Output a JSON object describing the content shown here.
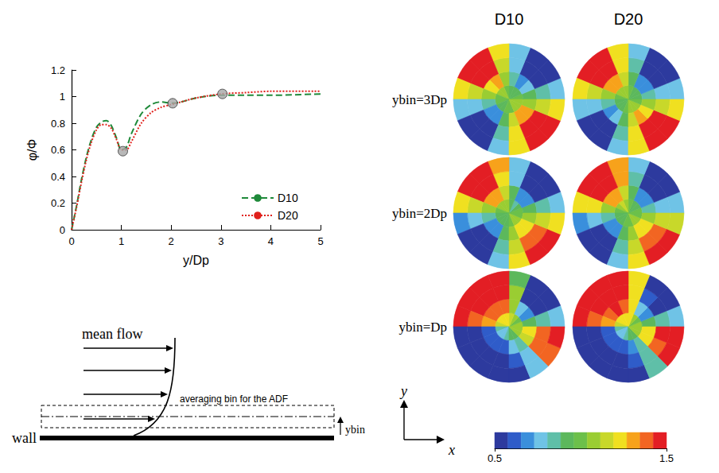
{
  "chart_data": {
    "type": "line",
    "x_label": "y/Dp",
    "y_label": "φ/Φ",
    "xlim": [
      0,
      5
    ],
    "xticks": [
      0,
      1,
      2,
      3,
      4,
      5
    ],
    "ylim": [
      0,
      1.2
    ],
    "yticks": [
      0,
      0.2,
      0.4,
      0.6,
      0.8,
      1,
      1.2
    ],
    "grid": false,
    "legend": "lower right",
    "series": [
      {
        "name": "D10",
        "color": "#1f8a3a",
        "line_style": "dashed",
        "x": [
          0,
          0.1,
          0.2,
          0.3,
          0.4,
          0.5,
          0.6,
          0.7,
          0.8,
          0.9,
          1.0,
          1.1,
          1.2,
          1.4,
          1.6,
          1.8,
          2.0,
          2.2,
          2.5,
          3.0,
          3.5,
          4.0,
          5.0
        ],
        "values": [
          0,
          0.18,
          0.38,
          0.55,
          0.68,
          0.77,
          0.81,
          0.82,
          0.78,
          0.69,
          0.6,
          0.62,
          0.72,
          0.87,
          0.94,
          0.96,
          0.95,
          0.96,
          0.99,
          1.01,
          1.01,
          1.01,
          1.02
        ]
      },
      {
        "name": "D20",
        "color": "#e0201b",
        "line_style": "dotted",
        "x": [
          0,
          0.1,
          0.2,
          0.3,
          0.4,
          0.5,
          0.6,
          0.7,
          0.8,
          0.9,
          1.0,
          1.1,
          1.2,
          1.4,
          1.6,
          1.8,
          2.0,
          2.2,
          2.5,
          3.0,
          3.5,
          4.0,
          5.0
        ],
        "values": [
          0,
          0.17,
          0.36,
          0.53,
          0.66,
          0.75,
          0.79,
          0.79,
          0.76,
          0.68,
          0.6,
          0.6,
          0.66,
          0.8,
          0.88,
          0.92,
          0.94,
          0.96,
          0.99,
          1.02,
          1.03,
          1.04,
          1.04
        ]
      },
      {
        "type": "scatter",
        "marker": "circle",
        "color": "#a6a6a6",
        "x": [
          1.03,
          2.03,
          3.03
        ],
        "values": [
          0.59,
          0.95,
          1.02
        ]
      }
    ]
  },
  "schematic": {
    "flow_label": "mean flow",
    "bin_label": "averaging bin for the ADF",
    "height_label": "ybin",
    "wall_label": "wall"
  },
  "axes_key": {
    "y": "y",
    "x": "x"
  },
  "sphere_maps": {
    "columns": [
      "D10",
      "D20"
    ],
    "rows": [
      {
        "label": "ybin=3Dp",
        "maps": [
          [
            [
              0.97,
              0.92,
              0.9,
              0.95,
              1.03,
              1.08,
              1.08,
              1.02,
              0.97,
              0.92,
              0.92,
              0.97,
              1.03,
              1.08,
              1.1,
              1.04
            ],
            [
              0.9,
              0.74,
              0.72,
              0.88,
              1.1,
              1.27,
              1.26,
              1.08,
              0.88,
              0.72,
              0.73,
              0.9,
              1.12,
              1.28,
              1.27,
              1.1
            ],
            [
              0.82,
              0.55,
              0.54,
              0.8,
              1.18,
              1.45,
              1.44,
              1.15,
              0.8,
              0.55,
              0.55,
              0.82,
              1.2,
              1.46,
              1.45,
              1.18
            ],
            [
              0.78,
              0.5,
              0.5,
              0.75,
              1.22,
              1.5,
              1.5,
              1.2,
              0.76,
              0.5,
              0.5,
              0.78,
              1.24,
              1.5,
              1.5,
              1.22
            ]
          ],
          [
            [
              0.96,
              0.9,
              0.91,
              0.97,
              1.05,
              1.1,
              1.08,
              1.03,
              0.95,
              0.9,
              0.92,
              0.98,
              1.04,
              1.1,
              1.08,
              1.03
            ],
            [
              0.88,
              0.72,
              0.73,
              0.9,
              1.12,
              1.3,
              1.27,
              1.1,
              0.87,
              0.7,
              0.74,
              0.9,
              1.13,
              1.3,
              1.26,
              1.08
            ],
            [
              0.8,
              0.53,
              0.55,
              0.82,
              1.2,
              1.48,
              1.45,
              1.17,
              0.79,
              0.53,
              0.56,
              0.84,
              1.21,
              1.48,
              1.44,
              1.16
            ],
            [
              0.76,
              0.5,
              0.5,
              0.77,
              1.25,
              1.5,
              1.5,
              1.22,
              0.74,
              0.5,
              0.5,
              0.8,
              1.26,
              1.5,
              1.5,
              1.2
            ]
          ]
        ]
      },
      {
        "label": "ybin=2Dp",
        "maps": [
          [
            [
              0.98,
              0.9,
              0.88,
              0.96,
              1.06,
              1.1,
              1.08,
              1.02,
              0.96,
              0.9,
              0.9,
              0.96,
              1.02,
              1.06,
              1.06,
              1.02
            ],
            [
              0.9,
              0.7,
              0.68,
              0.9,
              1.15,
              1.32,
              1.3,
              1.1,
              0.86,
              0.68,
              0.7,
              0.9,
              1.08,
              1.22,
              1.22,
              1.08
            ],
            [
              0.82,
              0.52,
              0.5,
              0.8,
              1.25,
              1.5,
              1.48,
              1.18,
              0.78,
              0.52,
              0.54,
              0.82,
              1.15,
              1.4,
              1.42,
              1.15
            ],
            [
              0.78,
              0.5,
              0.5,
              0.76,
              1.3,
              1.5,
              1.5,
              1.24,
              0.72,
              0.5,
              0.5,
              0.76,
              1.2,
              1.5,
              1.5,
              1.2
            ]
          ],
          [
            [
              0.97,
              0.9,
              0.89,
              0.97,
              1.06,
              1.12,
              1.1,
              1.03,
              0.95,
              0.9,
              0.91,
              0.97,
              1.03,
              1.07,
              1.06,
              1.01
            ],
            [
              0.88,
              0.69,
              0.7,
              0.9,
              1.16,
              1.34,
              1.31,
              1.11,
              0.85,
              0.67,
              0.71,
              0.9,
              1.1,
              1.24,
              1.2,
              1.06
            ],
            [
              0.8,
              0.51,
              0.52,
              0.82,
              1.27,
              1.5,
              1.48,
              1.2,
              0.76,
              0.5,
              0.54,
              0.83,
              1.17,
              1.42,
              1.4,
              1.13
            ],
            [
              0.75,
              0.5,
              0.5,
              0.78,
              1.32,
              1.5,
              1.5,
              1.26,
              0.7,
              0.5,
              0.5,
              0.78,
              1.22,
              1.5,
              1.5,
              1.18
            ]
          ]
        ]
      },
      {
        "label": "ybin=Dp",
        "maps": [
          [
            [
              1.1,
              1.0,
              1.05,
              1.15,
              1.2,
              1.2,
              1.2,
              1.15,
              0.85,
              0.8,
              0.8,
              0.85,
              0.9,
              0.95,
              1.05,
              1.1
            ],
            [
              0.95,
              0.7,
              0.75,
              1.1,
              1.35,
              1.4,
              1.4,
              1.3,
              0.65,
              0.6,
              0.6,
              0.65,
              0.75,
              0.85,
              1.15,
              1.2
            ],
            [
              0.85,
              0.55,
              0.55,
              1.05,
              1.45,
              1.5,
              1.5,
              1.4,
              0.55,
              0.5,
              0.5,
              0.55,
              0.6,
              0.8,
              1.35,
              1.4
            ],
            [
              0.8,
              0.5,
              0.5,
              0.95,
              1.5,
              1.5,
              1.5,
              1.45,
              0.5,
              0.5,
              0.5,
              0.5,
              0.55,
              0.8,
              1.4,
              1.45
            ]
          ],
          [
            [
              1.1,
              1.0,
              1.1,
              1.2,
              1.25,
              1.2,
              1.2,
              1.15,
              0.85,
              0.8,
              0.8,
              0.85,
              0.9,
              0.95,
              1.05,
              1.1
            ],
            [
              0.95,
              0.7,
              0.8,
              1.2,
              1.4,
              1.45,
              1.4,
              1.3,
              0.65,
              0.6,
              0.6,
              0.6,
              0.7,
              0.85,
              1.2,
              1.25
            ],
            [
              0.85,
              0.55,
              0.6,
              1.25,
              1.5,
              1.5,
              1.5,
              1.4,
              0.55,
              0.5,
              0.5,
              0.5,
              0.6,
              0.85,
              1.4,
              1.45
            ],
            [
              0.8,
              0.5,
              0.55,
              1.2,
              1.5,
              1.5,
              1.5,
              1.45,
              0.5,
              0.5,
              0.5,
              0.5,
              0.55,
              0.85,
              1.45,
              1.5
            ]
          ]
        ]
      }
    ]
  },
  "colorbar": {
    "range": [
      0.5,
      1.5
    ],
    "ticks": [
      0.5,
      1.5
    ],
    "colors": [
      "#2d3a9e",
      "#2f5cc9",
      "#3a8fdc",
      "#6fc3e6",
      "#5fbfa8",
      "#5cb85c",
      "#6cc04a",
      "#9acd32",
      "#c8d82a",
      "#f0e020",
      "#f7a21b",
      "#f26522",
      "#e31e24"
    ]
  }
}
